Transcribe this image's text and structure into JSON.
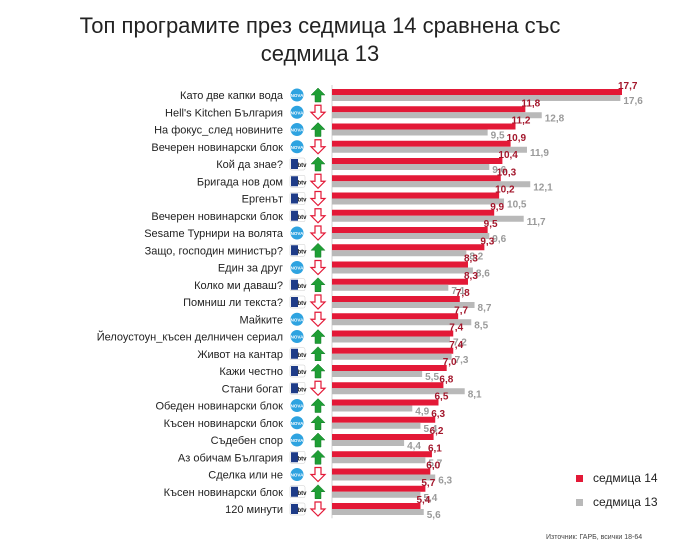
{
  "chart_data": {
    "type": "bar",
    "title_line1": "Топ програмите през седмица 14 сравнена със",
    "title_line2": "седмица 13",
    "xlim": [
      0,
      17.7
    ],
    "categories": [
      {
        "label": "Като две капки вода",
        "channel": "NOVA",
        "trend": "up"
      },
      {
        "label": "Hell's Kitchen България",
        "channel": "NOVA",
        "trend": "down"
      },
      {
        "label": "На фокус_след новините",
        "channel": "NOVA",
        "trend": "up"
      },
      {
        "label": "Вечерен новинарски блок",
        "channel": "NOVA",
        "trend": "down"
      },
      {
        "label": "Кой да знае?",
        "channel": "bTV",
        "trend": "up"
      },
      {
        "label": "Бригада нов дом",
        "channel": "bTV",
        "trend": "down"
      },
      {
        "label": "Ергенът",
        "channel": "bTV",
        "trend": "down"
      },
      {
        "label": "Вечерен новинарски блок",
        "channel": "bTV",
        "trend": "down"
      },
      {
        "label": "Sesame Турнири на волята",
        "channel": "NOVA",
        "trend": "down"
      },
      {
        "label": "Защо, господин министър?",
        "channel": "bTV",
        "trend": "up"
      },
      {
        "label": "Един за друг",
        "channel": "NOVA",
        "trend": "down"
      },
      {
        "label": "Колко ми даваш?",
        "channel": "bTV",
        "trend": "up"
      },
      {
        "label": "Помниш ли текста?",
        "channel": "bTV",
        "trend": "down"
      },
      {
        "label": "Майките",
        "channel": "NOVA",
        "trend": "down"
      },
      {
        "label": "Йелоустоун_късен делничен сериал",
        "channel": "NOVA",
        "trend": "up"
      },
      {
        "label": "Живот на кантар",
        "channel": "bTV",
        "trend": "up"
      },
      {
        "label": "Кажи честно",
        "channel": "bTV",
        "trend": "up"
      },
      {
        "label": "Стани богат",
        "channel": "bTV",
        "trend": "down"
      },
      {
        "label": "Обеден новинарски блок",
        "channel": "NOVA",
        "trend": "up"
      },
      {
        "label": "Късен новинарски блок",
        "channel": "NOVA",
        "trend": "up"
      },
      {
        "label": "Съдебен спор",
        "channel": "NOVA",
        "trend": "up"
      },
      {
        "label": "Аз обичам България",
        "channel": "bTV",
        "trend": "up"
      },
      {
        "label": "Сделка или не",
        "channel": "NOVA",
        "trend": "down"
      },
      {
        "label": "Късен новинарски блок",
        "channel": "bTV",
        "trend": "up"
      },
      {
        "label": "120 минути",
        "channel": "bTV",
        "trend": "down"
      }
    ],
    "series": [
      {
        "name": "седмица 14",
        "color": "#e31937",
        "values": [
          17.7,
          11.8,
          11.2,
          10.9,
          10.4,
          10.3,
          10.2,
          9.9,
          9.5,
          9.3,
          8.3,
          8.3,
          7.8,
          7.7,
          7.4,
          7.4,
          7.0,
          6.8,
          6.5,
          6.3,
          6.2,
          6.1,
          6.0,
          5.7,
          5.4
        ],
        "labels": [
          "17,7",
          "11,8",
          "11,2",
          "10,9",
          "10,4",
          "10,3",
          "10,2",
          "9,9",
          "9,5",
          "9,3",
          "8,3",
          "8,3",
          "7,8",
          "7,7",
          "7,4",
          "7,4",
          "7,0",
          "6,8",
          "6,5",
          "6,3",
          "6,2",
          "6,1",
          "6,0",
          "5,7",
          "5,4"
        ]
      },
      {
        "name": "седмица 13",
        "color": "#b9b9b9",
        "values": [
          17.6,
          12.8,
          9.5,
          11.9,
          9.6,
          12.1,
          10.5,
          11.7,
          9.6,
          8.2,
          8.6,
          7.1,
          8.7,
          8.5,
          7.2,
          7.3,
          5.5,
          8.1,
          4.9,
          5.4,
          4.4,
          5.7,
          6.3,
          5.4,
          5.6
        ],
        "labels": [
          "17,6",
          "12,8",
          "9,5",
          "11,9",
          "9,6",
          "12,1",
          "10,5",
          "11,7",
          "9,6",
          "8,2",
          "8,6",
          "7,1",
          "8,7",
          "8,5",
          "7,2",
          "7,3",
          "5,5",
          "8,1",
          "4,9",
          "5,4",
          "4,4",
          "5,7",
          "6,3",
          "5,4",
          "5,6"
        ]
      }
    ],
    "channel_labels": {
      "NOVA": "NOVA",
      "bTV": "btv"
    },
    "colors": {
      "up": "#1f9e35",
      "down": "#e31937",
      "nova": "#2ea3e0",
      "btv_box": "#1f3c88",
      "text": "#222222"
    }
  },
  "source": "Източник: ГАРБ, всички 18-64"
}
